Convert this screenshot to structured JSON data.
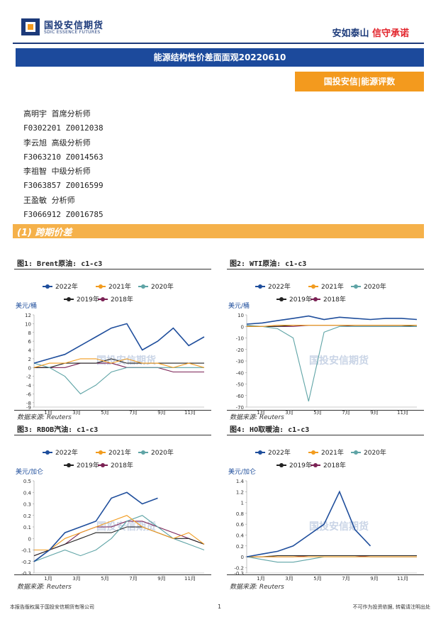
{
  "header": {
    "logo_cn": "国投安信期货",
    "logo_en": "SDIC ESSENCE FUTURES",
    "slogan_a": "安如泰山",
    "slogan_b": "信守承诺"
  },
  "title": "能源结构性价差面面观20220610",
  "tag": "国投安信|能源评数",
  "analysts": [
    {
      "name": "高明宇 首席分析师",
      "ids": "F0302201 Z0012038"
    },
    {
      "name": "李云旭 高级分析师",
      "ids": "F3063210 Z0014563"
    },
    {
      "name": "李祖智 中级分析师",
      "ids": "F3063857 Z0016599"
    },
    {
      "name": "王盈敏 分析师",
      "ids": "F3066912 Z0016785"
    }
  ],
  "section_title": "(1) 跨期价差",
  "colors": {
    "y2022": "#1f4e9c",
    "y2021": "#f29c1f",
    "y2020": "#5fa4a6",
    "y2019": "#222222",
    "y2018": "#7b2255"
  },
  "watermark": "国投安信期货",
  "charts": [
    {
      "figure_title": "图1: Brent原油: c1-c3",
      "unit": "美元/桶",
      "source": "数据来源: Reuters",
      "chart_data": {
        "type": "line",
        "ylim": [
          -9,
          12
        ],
        "yticks": [
          "12",
          "10",
          "8",
          "6",
          "4",
          "2",
          "0",
          "-2",
          "-4",
          "-6",
          "-8",
          "-9"
        ],
        "xticks": [
          "1月",
          "3月",
          "5月",
          "7月",
          "9月",
          "11月"
        ],
        "series": [
          {
            "name": "2022年",
            "values": [
              1,
              2,
              3,
              5,
              7,
              9,
              10,
              4,
              6,
              9,
              5,
              7
            ]
          },
          {
            "name": "2021年",
            "values": [
              0,
              1,
              1,
              2,
              2,
              1,
              2,
              1,
              1,
              0,
              1,
              0
            ]
          },
          {
            "name": "2020年",
            "values": [
              1,
              0,
              -2,
              -6,
              -4,
              -1,
              0,
              0,
              0,
              0,
              0,
              0
            ]
          },
          {
            "name": "2019年",
            "values": [
              0,
              0,
              1,
              1,
              1,
              2,
              1,
              1,
              1,
              1,
              1,
              1
            ]
          },
          {
            "name": "2018年",
            "values": [
              0,
              0,
              0,
              1,
              1,
              1,
              0,
              0,
              0,
              -1,
              -1,
              -1
            ]
          }
        ]
      }
    },
    {
      "figure_title": "图2: WTI原油: c1-c3",
      "unit": "美元/桶",
      "source": "数据来源: Reuters",
      "chart_data": {
        "type": "line",
        "ylim": [
          -70,
          10
        ],
        "yticks": [
          "10",
          "0",
          "-10",
          "-20",
          "-30",
          "-40",
          "-50",
          "-60",
          "-70"
        ],
        "xticks": [
          "1月",
          "3月",
          "5月",
          "7月",
          "9月",
          "11月"
        ],
        "series": [
          {
            "name": "2022年",
            "values": [
              2,
              3,
              5,
              7,
              9,
              6,
              8,
              7,
              6,
              7,
              7,
              6
            ]
          },
          {
            "name": "2021年",
            "values": [
              0,
              0,
              1,
              1,
              1,
              1,
              1,
              1,
              1,
              1,
              1,
              1
            ]
          },
          {
            "name": "2020年",
            "values": [
              1,
              0,
              -2,
              -10,
              -65,
              -5,
              0,
              0,
              0,
              0,
              0,
              0
            ]
          },
          {
            "name": "2019年",
            "values": [
              0,
              0,
              0,
              1,
              1,
              1,
              1,
              1,
              1,
              1,
              1,
              0
            ]
          },
          {
            "name": "2018年",
            "values": [
              0,
              0,
              0,
              0,
              1,
              1,
              1,
              0,
              0,
              0,
              0,
              0
            ]
          }
        ]
      }
    },
    {
      "figure_title": "图3: RBOB汽油: c1-c3",
      "unit": "美元/加仑",
      "source": "数据来源: Reuters",
      "chart_data": {
        "type": "line",
        "ylim": [
          -0.3,
          0.5
        ],
        "yticks": [
          "0.5",
          "0.4",
          "0.3",
          "0.2",
          "0.1",
          "0",
          "-0.1",
          "-0.2",
          "-0.3"
        ],
        "xticks": [
          "1月",
          "3月",
          "5月",
          "7月",
          "9月",
          "11月"
        ],
        "series": [
          {
            "name": "2022年",
            "values": [
              -0.2,
              -0.1,
              0.05,
              0.1,
              0.15,
              0.35,
              0.4,
              0.3,
              0.35
            ]
          },
          {
            "name": "2021年",
            "values": [
              -0.1,
              -0.1,
              0.0,
              0.05,
              0.1,
              0.15,
              0.2,
              0.1,
              0.05,
              0.0,
              0.05,
              -0.05
            ]
          },
          {
            "name": "2020年",
            "values": [
              -0.2,
              -0.15,
              -0.1,
              -0.15,
              -0.1,
              0.0,
              0.15,
              0.2,
              0.1,
              0.0,
              -0.05,
              -0.1
            ]
          },
          {
            "name": "2019年",
            "values": [
              -0.15,
              -0.1,
              -0.05,
              0.0,
              0.05,
              0.05,
              0.1,
              0.1,
              0.05,
              0.0,
              0.0,
              -0.05
            ]
          },
          {
            "name": "2018年",
            "values": [
              -0.15,
              -0.1,
              -0.05,
              0.05,
              0.1,
              0.1,
              0.15,
              0.15,
              0.1,
              0.05,
              0.0,
              -0.05
            ]
          }
        ]
      }
    },
    {
      "figure_title": "图4: HO取暖油: c1-c3",
      "unit": "美元/加仑",
      "source": "数据来源: Reuters",
      "chart_data": {
        "type": "line",
        "ylim": [
          -0.3,
          1.4
        ],
        "yticks": [
          "1.4",
          "1.2",
          "1",
          "0.8",
          "0.6",
          "0.4",
          "0.2",
          "0",
          "-0.2",
          "-0.3"
        ],
        "xticks": [
          "1月",
          "3月",
          "5月",
          "7月",
          "9月",
          "11月"
        ],
        "series": [
          {
            "name": "2022年",
            "values": [
              0.0,
              0.05,
              0.1,
              0.2,
              0.4,
              0.6,
              1.2,
              0.5,
              0.2
            ]
          },
          {
            "name": "2021年",
            "values": [
              0,
              0,
              0,
              0,
              0,
              0,
              0,
              0,
              0,
              0,
              0,
              0
            ]
          },
          {
            "name": "2020年",
            "values": [
              0,
              -0.05,
              -0.1,
              -0.1,
              -0.05,
              0,
              0,
              0,
              0,
              0,
              0,
              0
            ]
          },
          {
            "name": "2019年",
            "values": [
              0,
              0,
              0.02,
              0.02,
              0.02,
              0.02,
              0.02,
              0.02,
              0.02,
              0.02,
              0.02,
              0.02
            ]
          },
          {
            "name": "2018年",
            "values": [
              0,
              0,
              0,
              0,
              0.02,
              0.02,
              0.02,
              0.02,
              0,
              0,
              0,
              0
            ]
          }
        ]
      }
    }
  ],
  "footer": {
    "left": "本报告版权属于国投安信期货有限公司",
    "page": "1",
    "right": "不可作为投资依据, 转载请注明出处"
  }
}
